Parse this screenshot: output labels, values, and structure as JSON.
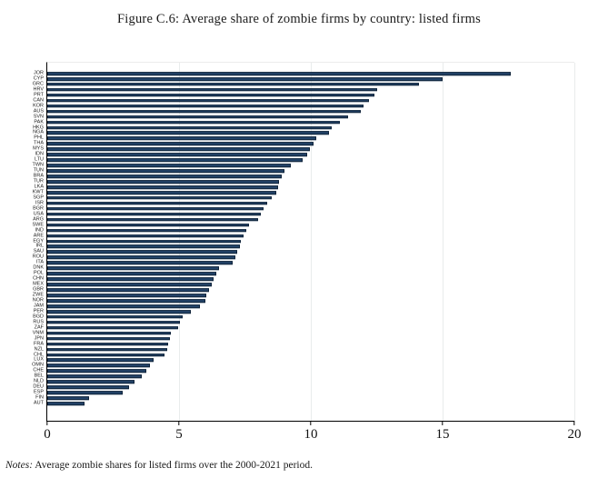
{
  "title": "Figure C.6: Average share of zombie firms by country: listed firms",
  "notes": {
    "label": "Notes:",
    "text": " Average zombie shares for listed firms over the 2000-2021 period."
  },
  "chart_data": {
    "type": "bar",
    "orientation": "horizontal",
    "title": "Figure C.6: Average share of zombie firms by country: listed firms",
    "xlabel": "",
    "ylabel": "",
    "xlim": [
      0,
      20
    ],
    "xticks": [
      0,
      5,
      10,
      15,
      20
    ],
    "grid": true,
    "bar_color": "#24456b",
    "bar_border_color": "#0f2238",
    "categories": [
      "JOR",
      "CYP",
      "GRC",
      "HRV",
      "PRT",
      "CAN",
      "KOR",
      "AUS",
      "SVN",
      "PAK",
      "HKG",
      "NGA",
      "PHL",
      "THA",
      "MYS",
      "IDN",
      "LTU",
      "TWN",
      "TUN",
      "BRA",
      "TUR",
      "LKA",
      "KWT",
      "SGP",
      "ISR",
      "BGR",
      "USA",
      "ARG",
      "SWE",
      "IND",
      "ARE",
      "EGY",
      "IRL",
      "SAU",
      "ROU",
      "ITA",
      "DNK",
      "POL",
      "CHN",
      "MEX",
      "GBR",
      "ZWE",
      "NOR",
      "JAM",
      "PER",
      "BGD",
      "RUS",
      "ZAF",
      "VNM",
      "JPN",
      "FRA",
      "NZL",
      "CHL",
      "LUX",
      "OMN",
      "CHE",
      "BEL",
      "NLD",
      "DEU",
      "ESP",
      "FIN",
      "AUT"
    ],
    "values": [
      17.6,
      15.0,
      14.1,
      12.5,
      12.4,
      12.2,
      12.0,
      11.9,
      11.4,
      11.1,
      10.8,
      10.7,
      10.2,
      10.1,
      9.95,
      9.85,
      9.7,
      9.25,
      9.0,
      8.9,
      8.8,
      8.75,
      8.7,
      8.5,
      8.35,
      8.2,
      8.1,
      8.0,
      7.65,
      7.55,
      7.45,
      7.35,
      7.3,
      7.2,
      7.15,
      7.05,
      6.5,
      6.4,
      6.3,
      6.25,
      6.15,
      6.05,
      6.0,
      5.8,
      5.45,
      5.15,
      5.05,
      4.95,
      4.7,
      4.65,
      4.6,
      4.55,
      4.45,
      4.05,
      3.9,
      3.75,
      3.6,
      3.3,
      3.1,
      2.85,
      1.6,
      1.4
    ],
    "notes": "Notes: Average zombie shares for listed firms over the 2000-2021 period."
  }
}
